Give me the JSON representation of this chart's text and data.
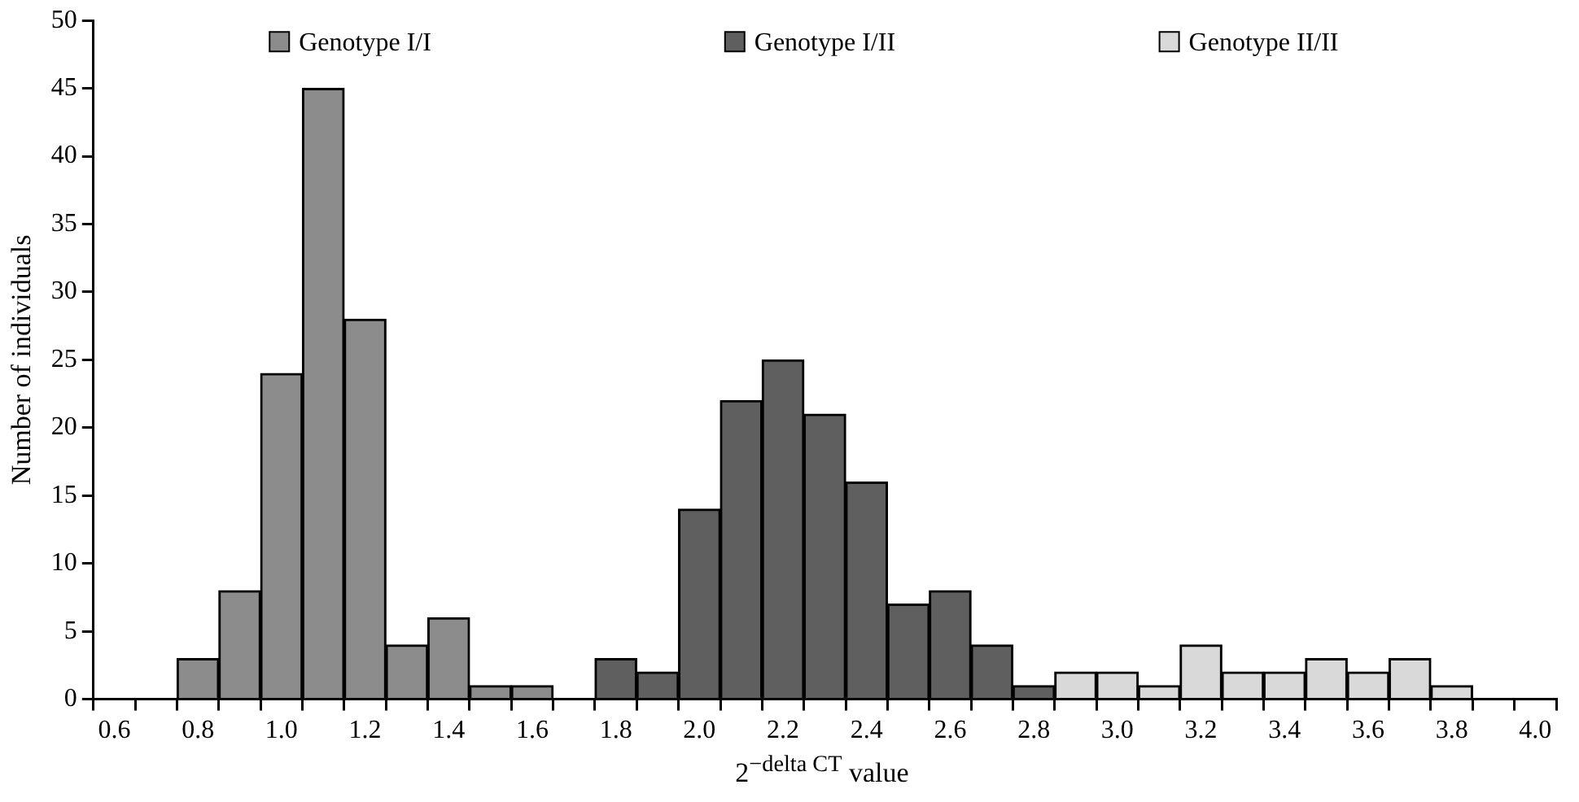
{
  "chart_data": {
    "type": "bar",
    "xlabel": "2$^{−delta CT}$ value",
    "ylabel": "Number of individuals",
    "categories": [
      "0.6",
      null,
      "0.8",
      null,
      "1.0",
      null,
      "1.2",
      null,
      "1.4",
      null,
      "1.6",
      null,
      "1.8",
      null,
      "2.0",
      null,
      "2.2",
      null,
      "2.4",
      null,
      "2.6",
      null,
      "2.8",
      null,
      "3.0",
      null,
      "3.2",
      null,
      "3.4",
      null,
      "3.6",
      null,
      "3.8",
      null,
      "4.0"
    ],
    "series": [
      {
        "name": "Genotype I/I",
        "color": "#8c8c8c",
        "values": [
          null,
          null,
          3,
          8,
          24,
          45,
          28,
          4,
          6,
          1,
          1,
          null,
          null,
          null,
          null,
          null,
          null,
          null,
          null,
          null,
          null,
          null,
          null,
          null,
          null,
          null,
          null,
          null,
          null,
          null,
          null,
          null,
          null,
          null,
          null
        ]
      },
      {
        "name": "Genotype I/II",
        "color": "#5f5f5f",
        "values": [
          null,
          null,
          null,
          null,
          null,
          null,
          null,
          null,
          null,
          null,
          null,
          null,
          3,
          2,
          14,
          22,
          25,
          21,
          16,
          7,
          8,
          4,
          1,
          null,
          null,
          null,
          null,
          null,
          null,
          null,
          null,
          null,
          null,
          null,
          null
        ]
      },
      {
        "name": "Genotype II/II",
        "color": "#d9d9d9",
        "values": [
          null,
          null,
          null,
          null,
          null,
          null,
          null,
          null,
          null,
          null,
          null,
          null,
          null,
          null,
          null,
          null,
          null,
          null,
          null,
          null,
          null,
          null,
          null,
          2,
          2,
          1,
          4,
          2,
          2,
          3,
          2,
          3,
          1,
          null,
          null
        ]
      }
    ],
    "ylim": [
      0,
      50
    ],
    "yticks": [
      0,
      5,
      10,
      15,
      20,
      25,
      30,
      35,
      40,
      45,
      50
    ],
    "grid": false,
    "legend": "top"
  }
}
